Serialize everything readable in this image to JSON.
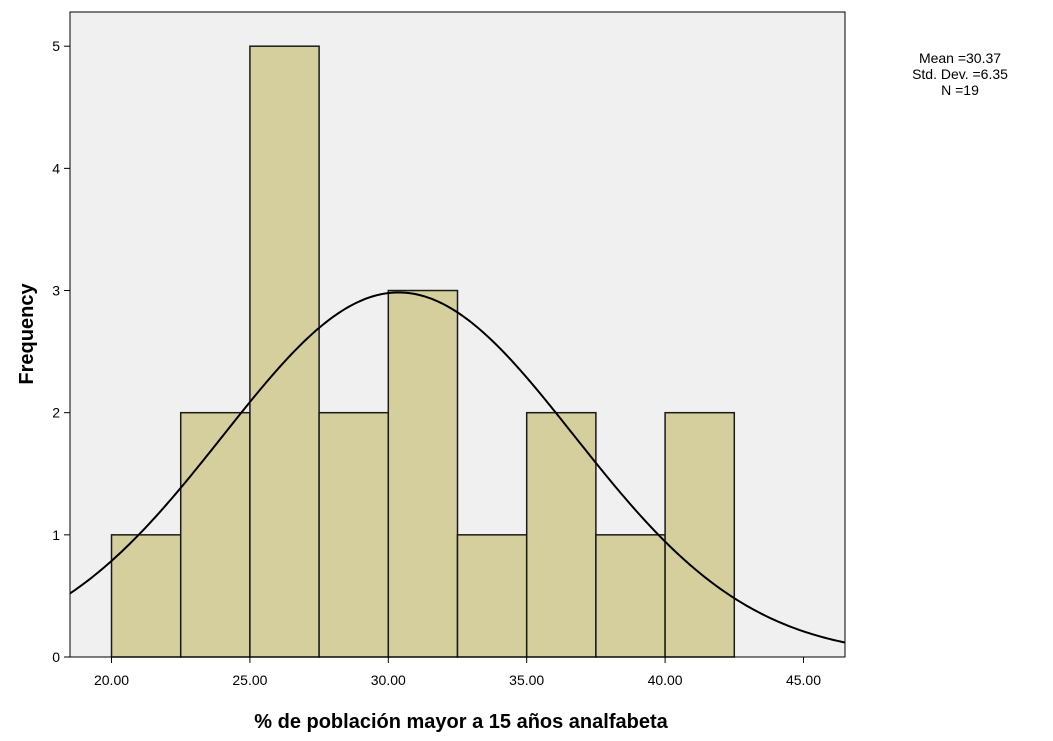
{
  "chart_data": {
    "type": "bar",
    "subtype": "histogram",
    "xlabel": "% de población mayor a 15 años analfabeta",
    "ylabel": "Frequency",
    "xlim": [
      18.5,
      46.5
    ],
    "ylim": [
      0,
      5.28
    ],
    "x_ticks": [
      20,
      25,
      30,
      35,
      40,
      45
    ],
    "x_tick_labels": [
      "20.00",
      "25.00",
      "30.00",
      "35.00",
      "40.00",
      "45.00"
    ],
    "y_ticks": [
      0,
      1,
      2,
      3,
      4,
      5
    ],
    "y_tick_labels": [
      "0",
      "1",
      "2",
      "3",
      "4",
      "5"
    ],
    "bins": [
      {
        "start": 20.0,
        "end": 22.5,
        "count": 1
      },
      {
        "start": 22.5,
        "end": 25.0,
        "count": 2
      },
      {
        "start": 25.0,
        "end": 27.5,
        "count": 5
      },
      {
        "start": 27.5,
        "end": 30.0,
        "count": 2
      },
      {
        "start": 30.0,
        "end": 32.5,
        "count": 3
      },
      {
        "start": 32.5,
        "end": 35.0,
        "count": 1
      },
      {
        "start": 35.0,
        "end": 37.5,
        "count": 2
      },
      {
        "start": 37.5,
        "end": 40.0,
        "count": 1
      },
      {
        "start": 40.0,
        "end": 42.5,
        "count": 2
      }
    ],
    "normal_curve": {
      "mean": 30.37,
      "std": 6.35,
      "n": 19,
      "bin_width": 2.5
    },
    "grid": false,
    "colors": {
      "bar_fill": "#d4cf9c",
      "bar_stroke": "#1a1a1a",
      "plot_background": "#f0f0f0",
      "curve": "#000000"
    }
  },
  "stats": {
    "mean_label": "Mean =30.37",
    "std_label": "Std. Dev. =6.35",
    "n_label": "N =19"
  }
}
